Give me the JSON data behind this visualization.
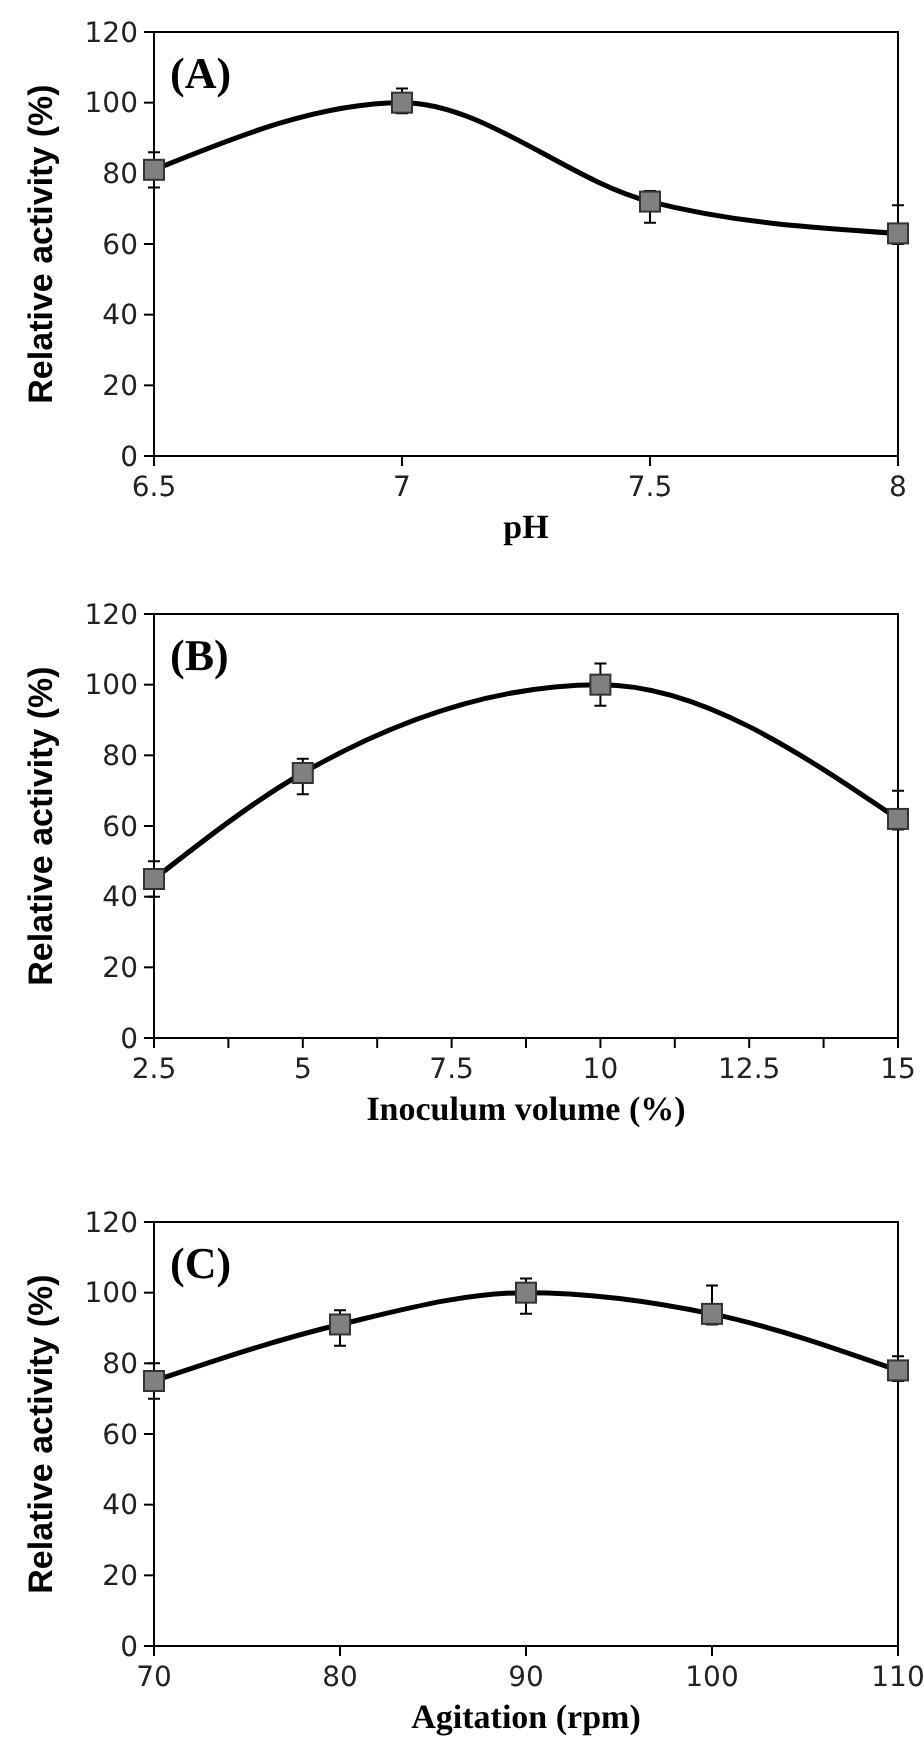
{
  "chart_data": [
    {
      "type": "line",
      "annotations": [
        "(A)"
      ],
      "xlabel": "pH",
      "ylabel": "Relative activity (%)",
      "x": [
        6.5,
        7,
        7.5,
        8
      ],
      "xlim": [
        6.5,
        8
      ],
      "xticks": [
        6.5,
        7,
        7.5,
        8
      ],
      "ylim": [
        0,
        120
      ],
      "yticks": [
        0,
        20,
        40,
        60,
        80,
        100,
        120
      ],
      "marker": "square",
      "line_style": "solid",
      "grid": false,
      "series": [
        {
          "color": "#000000",
          "values": [
            81,
            100,
            72,
            63
          ],
          "errors": [
            [
              76,
              86
            ],
            [
              97,
              104
            ],
            [
              66,
              75
            ],
            [
              60,
              71
            ]
          ]
        }
      ]
    },
    {
      "type": "line",
      "annotations": [
        "(B)"
      ],
      "xlabel": "Inoculum volume (%)",
      "ylabel": "Relative activity (%)",
      "x": [
        2.5,
        5,
        10,
        15
      ],
      "xlim": [
        2.5,
        15
      ],
      "xticks": [
        2.5,
        {
          "value": 3.75,
          "label": null
        },
        5,
        {
          "value": 6.25,
          "label": null
        },
        7.5,
        {
          "value": 8.75,
          "label": null
        },
        10,
        {
          "value": 11.25,
          "label": null
        },
        12.5,
        {
          "value": 13.75,
          "label": null
        },
        15
      ],
      "ylim": [
        0,
        120
      ],
      "yticks": [
        0,
        20,
        40,
        60,
        80,
        100,
        120
      ],
      "marker": "square",
      "line_style": "solid",
      "grid": false,
      "series": [
        {
          "color": "#000000",
          "values": [
            45,
            75,
            100,
            62
          ],
          "errors": [
            [
              40,
              50
            ],
            [
              69,
              79
            ],
            [
              94,
              106
            ],
            [
              59,
              70
            ]
          ]
        }
      ]
    },
    {
      "type": "line",
      "annotations": [
        "(C)"
      ],
      "xlabel": "Agitation (rpm)",
      "ylabel": "Relative activity (%)",
      "x": [
        70,
        80,
        90,
        100,
        110
      ],
      "xlim": [
        70,
        110
      ],
      "xticks": [
        70,
        80,
        90,
        100,
        110
      ],
      "ylim": [
        0,
        120
      ],
      "yticks": [
        0,
        20,
        40,
        60,
        80,
        100,
        120
      ],
      "marker": "square",
      "line_style": "solid",
      "grid": false,
      "series": [
        {
          "color": "#000000",
          "values": [
            75,
            91,
            100,
            94,
            78
          ],
          "errors": [
            [
              70,
              80
            ],
            [
              85,
              95
            ],
            [
              94,
              104
            ],
            [
              91,
              102
            ],
            [
              75,
              82
            ]
          ]
        }
      ]
    }
  ]
}
